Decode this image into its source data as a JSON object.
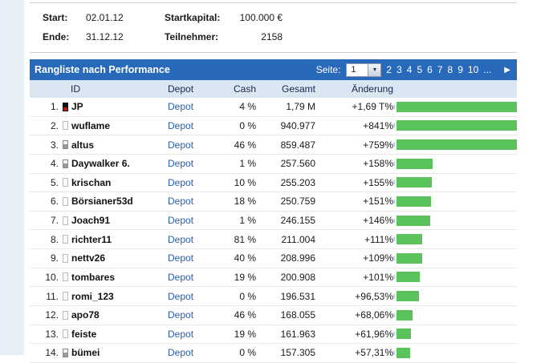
{
  "info": {
    "rows": [
      {
        "label1": "Start:",
        "value1": "02.01.12",
        "label2": "Startkapital:",
        "value2": "100.000 €"
      },
      {
        "label1": "Ende:",
        "value1": "31.12.12",
        "label2": "Teilnehmer:",
        "value2": "2158"
      }
    ]
  },
  "ranking": {
    "title": "Rangliste nach Performance",
    "page_label": "Seite:",
    "page_current": "1",
    "pages": [
      "2",
      "3",
      "4",
      "5",
      "6",
      "7",
      "8",
      "9",
      "10",
      "..."
    ],
    "icons": {
      "dropdown": "▼",
      "next": "▶"
    },
    "columns": {
      "id": "ID",
      "depot": "Depot",
      "cash": "Cash",
      "gesamt": "Gesamt",
      "aenderung": "Änderung"
    },
    "rows": [
      {
        "rank": "1.",
        "icon": "dark",
        "name": "JP",
        "depot": "Depot",
        "cash": "4 %",
        "gesamt": "1,79 M",
        "aenderung": "+1,69 T%",
        "bar_pct": 100
      },
      {
        "rank": "2.",
        "icon": "light",
        "name": "wuflame",
        "depot": "Depot",
        "cash": "0 %",
        "gesamt": "940.977",
        "aenderung": "+841%",
        "bar_pct": 100
      },
      {
        "rank": "3.",
        "icon": "grey",
        "name": "altus",
        "depot": "Depot",
        "cash": "46 %",
        "gesamt": "859.487",
        "aenderung": "+759%",
        "bar_pct": 100
      },
      {
        "rank": "4.",
        "icon": "grey",
        "name": "Daywalker 6.",
        "depot": "Depot",
        "cash": "1 %",
        "gesamt": "257.560",
        "aenderung": "+158%",
        "bar_pct": 30
      },
      {
        "rank": "5.",
        "icon": "light",
        "name": "krischan",
        "depot": "Depot",
        "cash": "10 %",
        "gesamt": "255.203",
        "aenderung": "+155%",
        "bar_pct": 29.5
      },
      {
        "rank": "6.",
        "icon": "light",
        "name": "Börsianer53d",
        "depot": "Depot",
        "cash": "18 %",
        "gesamt": "250.759",
        "aenderung": "+151%",
        "bar_pct": 28.8
      },
      {
        "rank": "7.",
        "icon": "light",
        "name": "Joach91",
        "depot": "Depot",
        "cash": "1 %",
        "gesamt": "246.155",
        "aenderung": "+146%",
        "bar_pct": 28
      },
      {
        "rank": "8.",
        "icon": "light",
        "name": "richter11",
        "depot": "Depot",
        "cash": "81 %",
        "gesamt": "211.004",
        "aenderung": "+111%",
        "bar_pct": 21.5
      },
      {
        "rank": "9.",
        "icon": "light",
        "name": "nettv26",
        "depot": "Depot",
        "cash": "40 %",
        "gesamt": "208.996",
        "aenderung": "+109%",
        "bar_pct": 21
      },
      {
        "rank": "10.",
        "icon": "light",
        "name": "tombares",
        "depot": "Depot",
        "cash": "19 %",
        "gesamt": "200.908",
        "aenderung": "+101%",
        "bar_pct": 19.5
      },
      {
        "rank": "11.",
        "icon": "light",
        "name": "romi_123",
        "depot": "Depot",
        "cash": "0 %",
        "gesamt": "196.531",
        "aenderung": "+96,53%",
        "bar_pct": 18.5
      },
      {
        "rank": "12.",
        "icon": "light",
        "name": "apo78",
        "depot": "Depot",
        "cash": "46 %",
        "gesamt": "168.055",
        "aenderung": "+68,06%",
        "bar_pct": 13
      },
      {
        "rank": "13.",
        "icon": "light",
        "name": "feiste",
        "depot": "Depot",
        "cash": "19 %",
        "gesamt": "161.963",
        "aenderung": "+61,96%",
        "bar_pct": 12
      },
      {
        "rank": "14.",
        "icon": "grey",
        "name": "bümei",
        "depot": "Depot",
        "cash": "0 %",
        "gesamt": "157.305",
        "aenderung": "+57,31%",
        "bar_pct": 11
      }
    ],
    "colors": {
      "accent_blue": "#2969b9",
      "bar_green": "#5bc35b",
      "link_blue": "#2a5caa",
      "header_row_bg": "#dbe6f3"
    }
  }
}
